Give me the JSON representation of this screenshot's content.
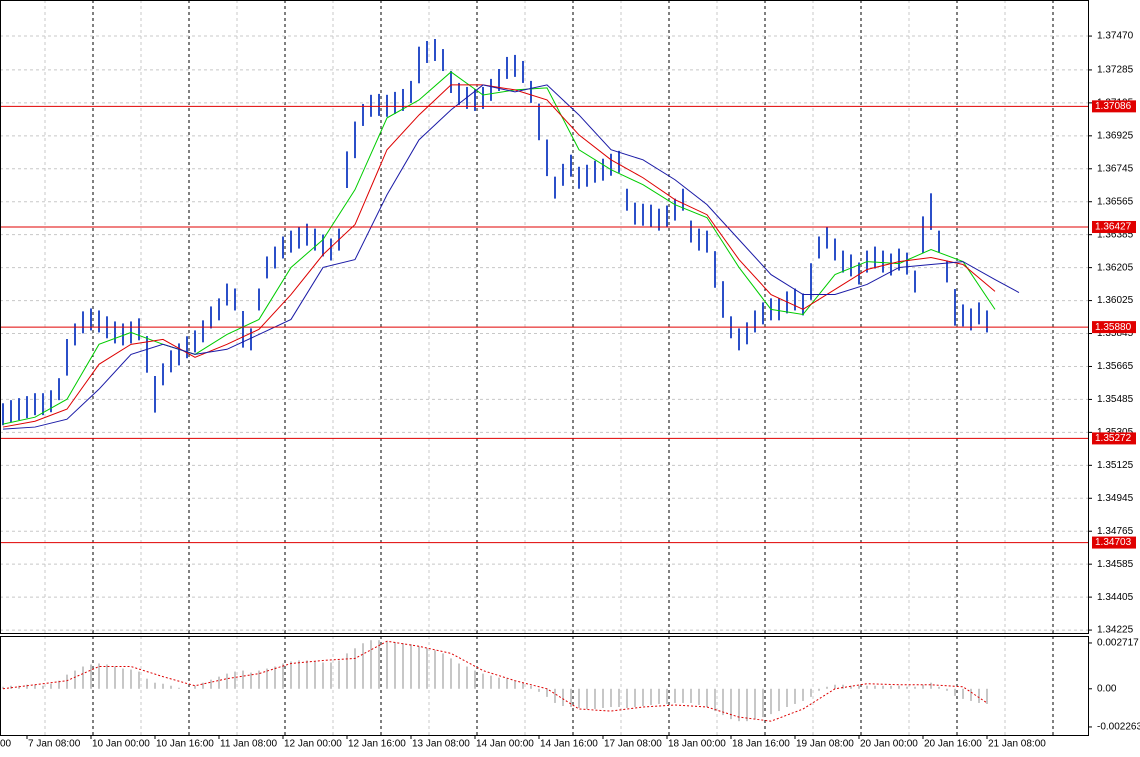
{
  "chart_data": [
    {
      "type": "hilo",
      "categories": [
        null,
        null,
        null,
        "7 Jan 08:00",
        null,
        null,
        null,
        null,
        null,
        null,
        null,
        "10 Jan 00:00",
        null,
        null,
        null,
        null,
        null,
        null,
        null,
        "10 Jan 16:00",
        null,
        null,
        null,
        null,
        null,
        null,
        null,
        "11 Jan 08:00",
        null,
        null,
        null,
        null,
        null,
        null,
        null,
        "12 Jan 00:00",
        null,
        null,
        null,
        null,
        null,
        null,
        null,
        "12 Jan 16:00",
        null,
        null,
        null,
        null,
        null,
        null,
        null,
        "13 Jan 08:00",
        null,
        null,
        null,
        null,
        null,
        null,
        null,
        "14 Jan 00:00",
        null,
        null,
        null,
        null,
        null,
        null,
        null,
        "14 Jan 16:00",
        null,
        null,
        null,
        null,
        null,
        null,
        null,
        "17 Jan 08:00",
        null,
        null,
        null,
        null,
        null,
        null,
        null,
        "18 Jan 00:00",
        null,
        null,
        null,
        null,
        null,
        null,
        null,
        "18 Jan 16:00",
        null,
        null,
        null,
        null,
        null,
        null,
        null,
        "19 Jan 08:00",
        null,
        null,
        null,
        null,
        null,
        null,
        null,
        "20 Jan 00:00",
        null,
        null,
        null,
        null,
        null,
        null,
        null,
        "20 Jan 16:00",
        null,
        null,
        null,
        null,
        null,
        null,
        null,
        "21 Jan 08:00"
      ],
      "cut_label": "00",
      "color": "#2b4fc8",
      "high": [
        1.35464,
        1.35481,
        1.35492,
        1.35503,
        1.35519,
        1.35519,
        1.35535,
        1.35601,
        1.35815,
        1.359,
        1.35966,
        1.35982,
        1.35971,
        1.35939,
        1.35911,
        1.359,
        1.35911,
        1.35928,
        1.35831,
        1.35613,
        1.35682,
        1.35753,
        1.35791,
        1.3583,
        1.35862,
        1.35917,
        1.35993,
        1.36037,
        1.36118,
        1.36091,
        1.35968,
        1.35873,
        1.36091,
        1.36266,
        1.3632,
        1.36375,
        1.36407,
        1.36429,
        1.36445,
        1.36418,
        1.36386,
        1.36364,
        1.36418,
        1.3684,
        1.37003,
        1.37099,
        1.37149,
        1.37154,
        1.37149,
        1.37165,
        1.37181,
        1.37225,
        1.37412,
        1.37443,
        1.37454,
        1.37399,
        1.37279,
        1.37214,
        1.37192,
        1.37181,
        1.37192,
        1.37236,
        1.3729,
        1.37356,
        1.37367,
        1.37334,
        1.37225,
        1.37101,
        1.36905,
        1.36702,
        1.36772,
        1.36822,
        1.36756,
        1.36767,
        1.36789,
        1.368,
        1.36827,
        1.36843,
        1.36636,
        1.3656,
        1.36554,
        1.36549,
        1.36527,
        1.36544,
        1.36582,
        1.36636,
        1.36462,
        1.36418,
        1.36407,
        1.36295,
        1.36131,
        1.35939,
        1.35873,
        1.35906,
        1.35971,
        1.36015,
        1.36037,
        1.36037,
        1.36075,
        1.36091,
        1.36064,
        1.36229,
        1.36375,
        1.36429,
        1.36364,
        1.36298,
        1.36277,
        1.36233,
        1.36298,
        1.3632,
        1.36298,
        1.36282,
        1.36309,
        1.36287,
        1.36189,
        1.36485,
        1.36611,
        1.36407,
        1.36244,
        1.36088,
        1.36004,
        1.35982,
        1.36015,
        1.35971
      ],
      "low": [
        1.35344,
        1.35361,
        1.35372,
        1.35383,
        1.35399,
        1.35399,
        1.35415,
        1.35481,
        1.35615,
        1.3578,
        1.35846,
        1.35862,
        1.35851,
        1.35819,
        1.35791,
        1.3578,
        1.35791,
        1.35808,
        1.35631,
        1.35413,
        1.35562,
        1.35633,
        1.35671,
        1.3571,
        1.35742,
        1.35797,
        1.35873,
        1.35917,
        1.35998,
        1.35971,
        1.35768,
        1.35753,
        1.35971,
        1.36146,
        1.362,
        1.36255,
        1.36287,
        1.36309,
        1.36325,
        1.36298,
        1.36266,
        1.36244,
        1.36298,
        1.3664,
        1.36803,
        1.36979,
        1.37029,
        1.37034,
        1.37029,
        1.37045,
        1.37061,
        1.37105,
        1.37212,
        1.37323,
        1.37334,
        1.37279,
        1.37159,
        1.37094,
        1.37072,
        1.37061,
        1.37072,
        1.37116,
        1.3717,
        1.37236,
        1.37247,
        1.37214,
        1.37105,
        1.36901,
        1.36705,
        1.36582,
        1.36652,
        1.36702,
        1.36636,
        1.36647,
        1.36669,
        1.3668,
        1.36707,
        1.36723,
        1.36516,
        1.3644,
        1.36434,
        1.36429,
        1.36407,
        1.36424,
        1.36462,
        1.36516,
        1.36342,
        1.36298,
        1.36287,
        1.36095,
        1.35931,
        1.35819,
        1.35753,
        1.35786,
        1.35851,
        1.35895,
        1.35917,
        1.35917,
        1.35955,
        1.35971,
        1.35944,
        1.36029,
        1.36255,
        1.36309,
        1.36244,
        1.36178,
        1.36157,
        1.36113,
        1.36178,
        1.362,
        1.36178,
        1.36162,
        1.36189,
        1.36167,
        1.36069,
        1.36285,
        1.36411,
        1.36287,
        1.36124,
        1.35888,
        1.35884,
        1.35862,
        1.35895,
        1.35851
      ],
      "series": [
        {
          "color": "#00cc00",
          "x": [
            0,
            4,
            8,
            12,
            16,
            20,
            24,
            28,
            32,
            36,
            40,
            44,
            48,
            52,
            56,
            60,
            64,
            68,
            72,
            76,
            80,
            84,
            88,
            92,
            96,
            100,
            104,
            108,
            112,
            116,
            120,
            124
          ],
          "values": [
            1.3535,
            1.35388,
            1.35486,
            1.35786,
            1.35851,
            1.35786,
            1.35731,
            1.3584,
            1.35922,
            1.36206,
            1.36358,
            1.36631,
            1.37023,
            1.37121,
            1.37274,
            1.37148,
            1.37176,
            1.37187,
            1.36849,
            1.3674,
            1.36658,
            1.36549,
            1.36478,
            1.36206,
            1.35977,
            1.35949,
            1.36167,
            1.36238,
            1.36227,
            1.36304,
            1.36238,
            1.35977
          ]
        },
        {
          "color": "#dd0000",
          "x": [
            0,
            4,
            8,
            12,
            16,
            20,
            24,
            28,
            32,
            36,
            40,
            44,
            48,
            52,
            56,
            60,
            64,
            68,
            72,
            76,
            80,
            84,
            88,
            92,
            96,
            100,
            104,
            108,
            112,
            116,
            120,
            124
          ],
          "values": [
            1.35334,
            1.35366,
            1.35432,
            1.35677,
            1.35786,
            1.35813,
            1.35715,
            1.35786,
            1.35868,
            1.36058,
            1.36276,
            1.3644,
            1.36849,
            1.37039,
            1.37203,
            1.37203,
            1.37176,
            1.37121,
            1.3693,
            1.36794,
            1.36696,
            1.36576,
            1.36494,
            1.36249,
            1.36058,
            1.35977,
            1.36086,
            1.36195,
            1.36238,
            1.3626,
            1.36222,
            1.36075
          ]
        },
        {
          "color": "#1a1aa6",
          "x": [
            0,
            4,
            8,
            12,
            16,
            20,
            24,
            28,
            32,
            36,
            40,
            44,
            48,
            52,
            56,
            60,
            64,
            68,
            72,
            76,
            80,
            84,
            88,
            92,
            96,
            100,
            104,
            108,
            112,
            116,
            120,
            124,
            127
          ],
          "values": [
            1.35323,
            1.35334,
            1.35377,
            1.35541,
            1.35731,
            1.35786,
            1.35731,
            1.35759,
            1.3584,
            1.35922,
            1.36206,
            1.36249,
            1.36603,
            1.36903,
            1.37067,
            1.37203,
            1.37165,
            1.37203,
            1.37039,
            1.36849,
            1.36794,
            1.36685,
            1.36549,
            1.36358,
            1.36167,
            1.36058,
            1.36058,
            1.36113,
            1.36206,
            1.36222,
            1.36238,
            1.3614,
            1.36069
          ]
        }
      ],
      "levels": [
        1.37086,
        1.36427,
        {
          "value": 1.3588,
          "label": "1.35880"
        },
        1.35272,
        1.34703
      ],
      "level_color": "#e00000",
      "ylim": [
        1.34209,
        1.37667
      ],
      "yticks": [
        {
          "value": 1.3747,
          "label": "1.37470"
        },
        1.37285,
        1.37105,
        1.36925,
        1.36745,
        1.36565,
        1.36385,
        1.36205,
        1.36025,
        1.35845,
        1.35665,
        1.35485,
        1.35305,
        1.35125,
        1.34945,
        1.34765,
        1.34585,
        1.34405,
        1.34225
      ],
      "grid": true
    },
    {
      "type": "oscillator",
      "histogram_color": "#b4b4b4",
      "histogram": [
        0.00012,
        0.00018,
        0.00018,
        0.00024,
        0.00024,
        0.00018,
        0.0003,
        0.00048,
        0.00084,
        0.00108,
        0.00132,
        0.00144,
        0.0015,
        0.00144,
        0.00132,
        0.0012,
        0.00114,
        0.00102,
        0.0006,
        0.00036,
        0.0003,
        0.00018,
        6e-05,
        0,
        0.00018,
        0.00036,
        0.00054,
        0.00072,
        0.0009,
        0.00102,
        0.00108,
        0.00096,
        0.00108,
        0.0012,
        0.00132,
        0.0015,
        0.00162,
        0.00168,
        0.00168,
        0.00162,
        0.00156,
        0.00156,
        0.00168,
        0.0021,
        0.0024,
        0.0027,
        0.00288,
        0.00288,
        0.00282,
        0.00276,
        0.0027,
        0.00264,
        0.00252,
        0.0024,
        0.00228,
        0.0021,
        0.0018,
        0.0015,
        0.00132,
        0.00108,
        0.0009,
        0.00078,
        0.00066,
        0.0006,
        0.00048,
        0.00036,
        0.00018,
        -0.00018,
        -0.00048,
        -0.00084,
        -0.00102,
        -0.00108,
        -0.00114,
        -0.0012,
        -0.0012,
        -0.00114,
        -0.00108,
        -0.00108,
        -0.00114,
        -0.00108,
        -0.00102,
        -0.00096,
        -0.0009,
        -0.0009,
        -0.00084,
        -0.00084,
        -0.00084,
        -0.00096,
        -0.00108,
        -0.00132,
        -0.00156,
        -0.0018,
        -0.00192,
        -0.00192,
        -0.0018,
        -0.00168,
        -0.0015,
        -0.00132,
        -0.00108,
        -0.0009,
        -0.00072,
        -0.00048,
        -0.00012,
        0.00012,
        0.00024,
        0.00024,
        0.00018,
        0.00018,
        0.00018,
        0.00018,
        0.00018,
        0.00018,
        0.00018,
        0.00012,
        0.00012,
        0.00024,
        0.00036,
        0.00012,
        -0.00012,
        -0.00042,
        -0.0006,
        -0.00072,
        -0.00084,
        -0.0009
      ],
      "signal": {
        "color": "#dd0000",
        "x": [
          0,
          4,
          8,
          12,
          16,
          20,
          24,
          28,
          32,
          36,
          40,
          44,
          48,
          52,
          56,
          60,
          64,
          68,
          72,
          76,
          80,
          84,
          88,
          92,
          96,
          100,
          104,
          108,
          112,
          116,
          120,
          123
        ],
        "values": [
          0,
          0.00024,
          0.00048,
          0.00132,
          0.00132,
          0.00072,
          0.00018,
          0.0006,
          0.0009,
          0.0015,
          0.00168,
          0.0018,
          0.00282,
          0.00252,
          0.0021,
          0.00108,
          0.00048,
          0,
          -0.0012,
          -0.00132,
          -0.00108,
          -0.00096,
          -0.00108,
          -0.00168,
          -0.00192,
          -0.0012,
          0,
          0.0003,
          0.00024,
          0.00024,
          0.00012,
          -0.00084
        ]
      },
      "ylim": [
        -0.00274,
        0.00313
      ],
      "yticks": [
        0.002717,
        {
          "value": 0,
          "label": "0.00"
        },
        -0.002263
      ]
    }
  ]
}
